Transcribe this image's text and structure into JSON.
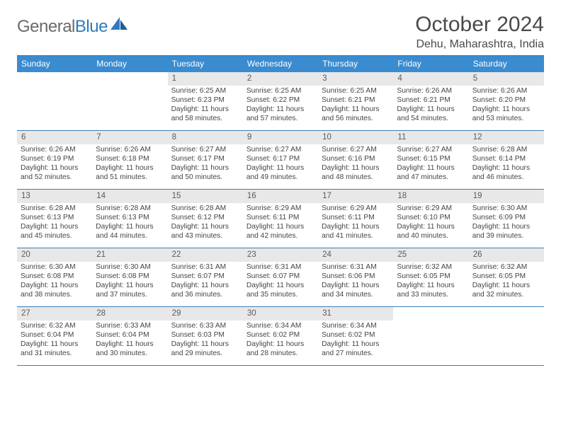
{
  "brand": {
    "part1": "General",
    "part2": "Blue"
  },
  "title": "October 2024",
  "location": "Dehu, Maharashtra, India",
  "colors": {
    "header_bg": "#3a8bd0",
    "accent": "#2f7bbf",
    "border": "#3a7fb8",
    "daynum_bg": "#e8e8e8"
  },
  "dow": [
    "Sunday",
    "Monday",
    "Tuesday",
    "Wednesday",
    "Thursday",
    "Friday",
    "Saturday"
  ],
  "weeks": [
    [
      {
        "n": "",
        "sr": "",
        "ss": "",
        "dl": ""
      },
      {
        "n": "",
        "sr": "",
        "ss": "",
        "dl": ""
      },
      {
        "n": "1",
        "sr": "Sunrise: 6:25 AM",
        "ss": "Sunset: 6:23 PM",
        "dl": "Daylight: 11 hours and 58 minutes."
      },
      {
        "n": "2",
        "sr": "Sunrise: 6:25 AM",
        "ss": "Sunset: 6:22 PM",
        "dl": "Daylight: 11 hours and 57 minutes."
      },
      {
        "n": "3",
        "sr": "Sunrise: 6:25 AM",
        "ss": "Sunset: 6:21 PM",
        "dl": "Daylight: 11 hours and 56 minutes."
      },
      {
        "n": "4",
        "sr": "Sunrise: 6:26 AM",
        "ss": "Sunset: 6:21 PM",
        "dl": "Daylight: 11 hours and 54 minutes."
      },
      {
        "n": "5",
        "sr": "Sunrise: 6:26 AM",
        "ss": "Sunset: 6:20 PM",
        "dl": "Daylight: 11 hours and 53 minutes."
      }
    ],
    [
      {
        "n": "6",
        "sr": "Sunrise: 6:26 AM",
        "ss": "Sunset: 6:19 PM",
        "dl": "Daylight: 11 hours and 52 minutes."
      },
      {
        "n": "7",
        "sr": "Sunrise: 6:26 AM",
        "ss": "Sunset: 6:18 PM",
        "dl": "Daylight: 11 hours and 51 minutes."
      },
      {
        "n": "8",
        "sr": "Sunrise: 6:27 AM",
        "ss": "Sunset: 6:17 PM",
        "dl": "Daylight: 11 hours and 50 minutes."
      },
      {
        "n": "9",
        "sr": "Sunrise: 6:27 AM",
        "ss": "Sunset: 6:17 PM",
        "dl": "Daylight: 11 hours and 49 minutes."
      },
      {
        "n": "10",
        "sr": "Sunrise: 6:27 AM",
        "ss": "Sunset: 6:16 PM",
        "dl": "Daylight: 11 hours and 48 minutes."
      },
      {
        "n": "11",
        "sr": "Sunrise: 6:27 AM",
        "ss": "Sunset: 6:15 PM",
        "dl": "Daylight: 11 hours and 47 minutes."
      },
      {
        "n": "12",
        "sr": "Sunrise: 6:28 AM",
        "ss": "Sunset: 6:14 PM",
        "dl": "Daylight: 11 hours and 46 minutes."
      }
    ],
    [
      {
        "n": "13",
        "sr": "Sunrise: 6:28 AM",
        "ss": "Sunset: 6:13 PM",
        "dl": "Daylight: 11 hours and 45 minutes."
      },
      {
        "n": "14",
        "sr": "Sunrise: 6:28 AM",
        "ss": "Sunset: 6:13 PM",
        "dl": "Daylight: 11 hours and 44 minutes."
      },
      {
        "n": "15",
        "sr": "Sunrise: 6:28 AM",
        "ss": "Sunset: 6:12 PM",
        "dl": "Daylight: 11 hours and 43 minutes."
      },
      {
        "n": "16",
        "sr": "Sunrise: 6:29 AM",
        "ss": "Sunset: 6:11 PM",
        "dl": "Daylight: 11 hours and 42 minutes."
      },
      {
        "n": "17",
        "sr": "Sunrise: 6:29 AM",
        "ss": "Sunset: 6:11 PM",
        "dl": "Daylight: 11 hours and 41 minutes."
      },
      {
        "n": "18",
        "sr": "Sunrise: 6:29 AM",
        "ss": "Sunset: 6:10 PM",
        "dl": "Daylight: 11 hours and 40 minutes."
      },
      {
        "n": "19",
        "sr": "Sunrise: 6:30 AM",
        "ss": "Sunset: 6:09 PM",
        "dl": "Daylight: 11 hours and 39 minutes."
      }
    ],
    [
      {
        "n": "20",
        "sr": "Sunrise: 6:30 AM",
        "ss": "Sunset: 6:08 PM",
        "dl": "Daylight: 11 hours and 38 minutes."
      },
      {
        "n": "21",
        "sr": "Sunrise: 6:30 AM",
        "ss": "Sunset: 6:08 PM",
        "dl": "Daylight: 11 hours and 37 minutes."
      },
      {
        "n": "22",
        "sr": "Sunrise: 6:31 AM",
        "ss": "Sunset: 6:07 PM",
        "dl": "Daylight: 11 hours and 36 minutes."
      },
      {
        "n": "23",
        "sr": "Sunrise: 6:31 AM",
        "ss": "Sunset: 6:07 PM",
        "dl": "Daylight: 11 hours and 35 minutes."
      },
      {
        "n": "24",
        "sr": "Sunrise: 6:31 AM",
        "ss": "Sunset: 6:06 PM",
        "dl": "Daylight: 11 hours and 34 minutes."
      },
      {
        "n": "25",
        "sr": "Sunrise: 6:32 AM",
        "ss": "Sunset: 6:05 PM",
        "dl": "Daylight: 11 hours and 33 minutes."
      },
      {
        "n": "26",
        "sr": "Sunrise: 6:32 AM",
        "ss": "Sunset: 6:05 PM",
        "dl": "Daylight: 11 hours and 32 minutes."
      }
    ],
    [
      {
        "n": "27",
        "sr": "Sunrise: 6:32 AM",
        "ss": "Sunset: 6:04 PM",
        "dl": "Daylight: 11 hours and 31 minutes."
      },
      {
        "n": "28",
        "sr": "Sunrise: 6:33 AM",
        "ss": "Sunset: 6:04 PM",
        "dl": "Daylight: 11 hours and 30 minutes."
      },
      {
        "n": "29",
        "sr": "Sunrise: 6:33 AM",
        "ss": "Sunset: 6:03 PM",
        "dl": "Daylight: 11 hours and 29 minutes."
      },
      {
        "n": "30",
        "sr": "Sunrise: 6:34 AM",
        "ss": "Sunset: 6:02 PM",
        "dl": "Daylight: 11 hours and 28 minutes."
      },
      {
        "n": "31",
        "sr": "Sunrise: 6:34 AM",
        "ss": "Sunset: 6:02 PM",
        "dl": "Daylight: 11 hours and 27 minutes."
      },
      {
        "n": "",
        "sr": "",
        "ss": "",
        "dl": ""
      },
      {
        "n": "",
        "sr": "",
        "ss": "",
        "dl": ""
      }
    ]
  ]
}
